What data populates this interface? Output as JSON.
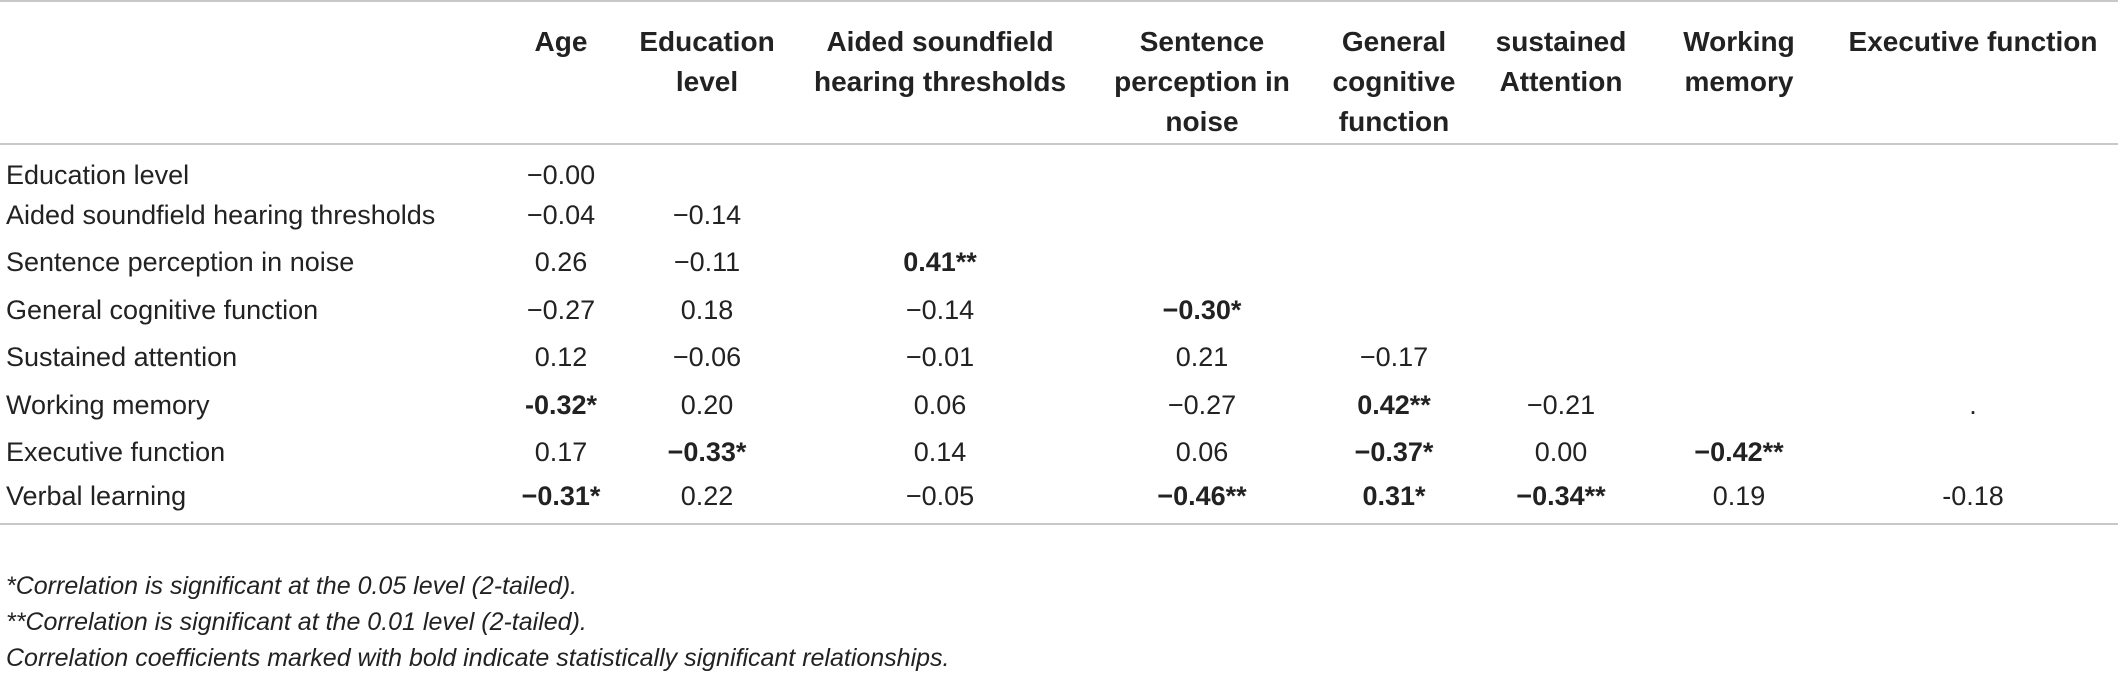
{
  "table": {
    "headers": [
      "",
      "Age",
      "Education level",
      "Aided soundfield hearing thresholds",
      "Sentence perception in noise",
      "General cognitive function",
      "sustained Attention",
      "Working memory",
      "Executive function"
    ],
    "rows": [
      {
        "label": "Education level",
        "cells": [
          {
            "v": "−0.00",
            "b": false
          },
          {
            "v": "",
            "b": false
          },
          {
            "v": "",
            "b": false
          },
          {
            "v": "",
            "b": false
          },
          {
            "v": "",
            "b": false
          },
          {
            "v": "",
            "b": false
          },
          {
            "v": "",
            "b": false
          },
          {
            "v": "",
            "b": false
          }
        ]
      },
      {
        "label": "Aided soundfield hearing thresholds",
        "cells": [
          {
            "v": "−0.04",
            "b": false
          },
          {
            "v": "−0.14",
            "b": false
          },
          {
            "v": "",
            "b": false
          },
          {
            "v": "",
            "b": false
          },
          {
            "v": "",
            "b": false
          },
          {
            "v": "",
            "b": false
          },
          {
            "v": "",
            "b": false
          },
          {
            "v": "",
            "b": false
          }
        ]
      },
      {
        "label": "Sentence perception in noise",
        "cells": [
          {
            "v": "0.26",
            "b": false
          },
          {
            "v": "−0.11",
            "b": false
          },
          {
            "v": "0.41**",
            "b": true
          },
          {
            "v": "",
            "b": false
          },
          {
            "v": "",
            "b": false
          },
          {
            "v": "",
            "b": false
          },
          {
            "v": "",
            "b": false
          },
          {
            "v": "",
            "b": false
          }
        ]
      },
      {
        "label": "General cognitive function",
        "cells": [
          {
            "v": "−0.27",
            "b": false
          },
          {
            "v": "0.18",
            "b": false
          },
          {
            "v": "−0.14",
            "b": false
          },
          {
            "v": "−0.30*",
            "b": true
          },
          {
            "v": "",
            "b": false
          },
          {
            "v": "",
            "b": false
          },
          {
            "v": "",
            "b": false
          },
          {
            "v": "",
            "b": false
          }
        ]
      },
      {
        "label": "Sustained attention",
        "cells": [
          {
            "v": "0.12",
            "b": false
          },
          {
            "v": "−0.06",
            "b": false
          },
          {
            "v": "−0.01",
            "b": false
          },
          {
            "v": "0.21",
            "b": false
          },
          {
            "v": "−0.17",
            "b": false
          },
          {
            "v": "",
            "b": false
          },
          {
            "v": "",
            "b": false
          },
          {
            "v": "",
            "b": false
          }
        ]
      },
      {
        "label": "Working memory",
        "cells": [
          {
            "v": "-0.32*",
            "b": true
          },
          {
            "v": "0.20",
            "b": false
          },
          {
            "v": "0.06",
            "b": false
          },
          {
            "v": "−0.27",
            "b": false
          },
          {
            "v": "0.42**",
            "b": true
          },
          {
            "v": "−0.21",
            "b": false
          },
          {
            "v": "",
            "b": false
          },
          {
            "v": ".",
            "b": false
          }
        ]
      },
      {
        "label": "Executive function",
        "cells": [
          {
            "v": "0.17",
            "b": false
          },
          {
            "v": "−0.33*",
            "b": true
          },
          {
            "v": "0.14",
            "b": false
          },
          {
            "v": "0.06",
            "b": false
          },
          {
            "v": "−0.37*",
            "b": true
          },
          {
            "v": "0.00",
            "b": false
          },
          {
            "v": "−0.42**",
            "b": true
          },
          {
            "v": "",
            "b": false
          }
        ]
      },
      {
        "label": "Verbal learning",
        "cells": [
          {
            "v": "−0.31*",
            "b": true
          },
          {
            "v": "0.22",
            "b": false
          },
          {
            "v": "−0.05",
            "b": false
          },
          {
            "v": "−0.46**",
            "b": true
          },
          {
            "v": "0.31*",
            "b": true
          },
          {
            "v": "−0.34**",
            "b": true
          },
          {
            "v": "0.19",
            "b": false
          },
          {
            "v": "-0.18",
            "b": false
          }
        ]
      }
    ]
  },
  "notes": [
    "*Correlation is significant at the 0.05 level (2-tailed).",
    "**Correlation is significant at the 0.01 level (2-tailed).",
    "Correlation coefficients marked with bold indicate statistically significant relationships."
  ]
}
